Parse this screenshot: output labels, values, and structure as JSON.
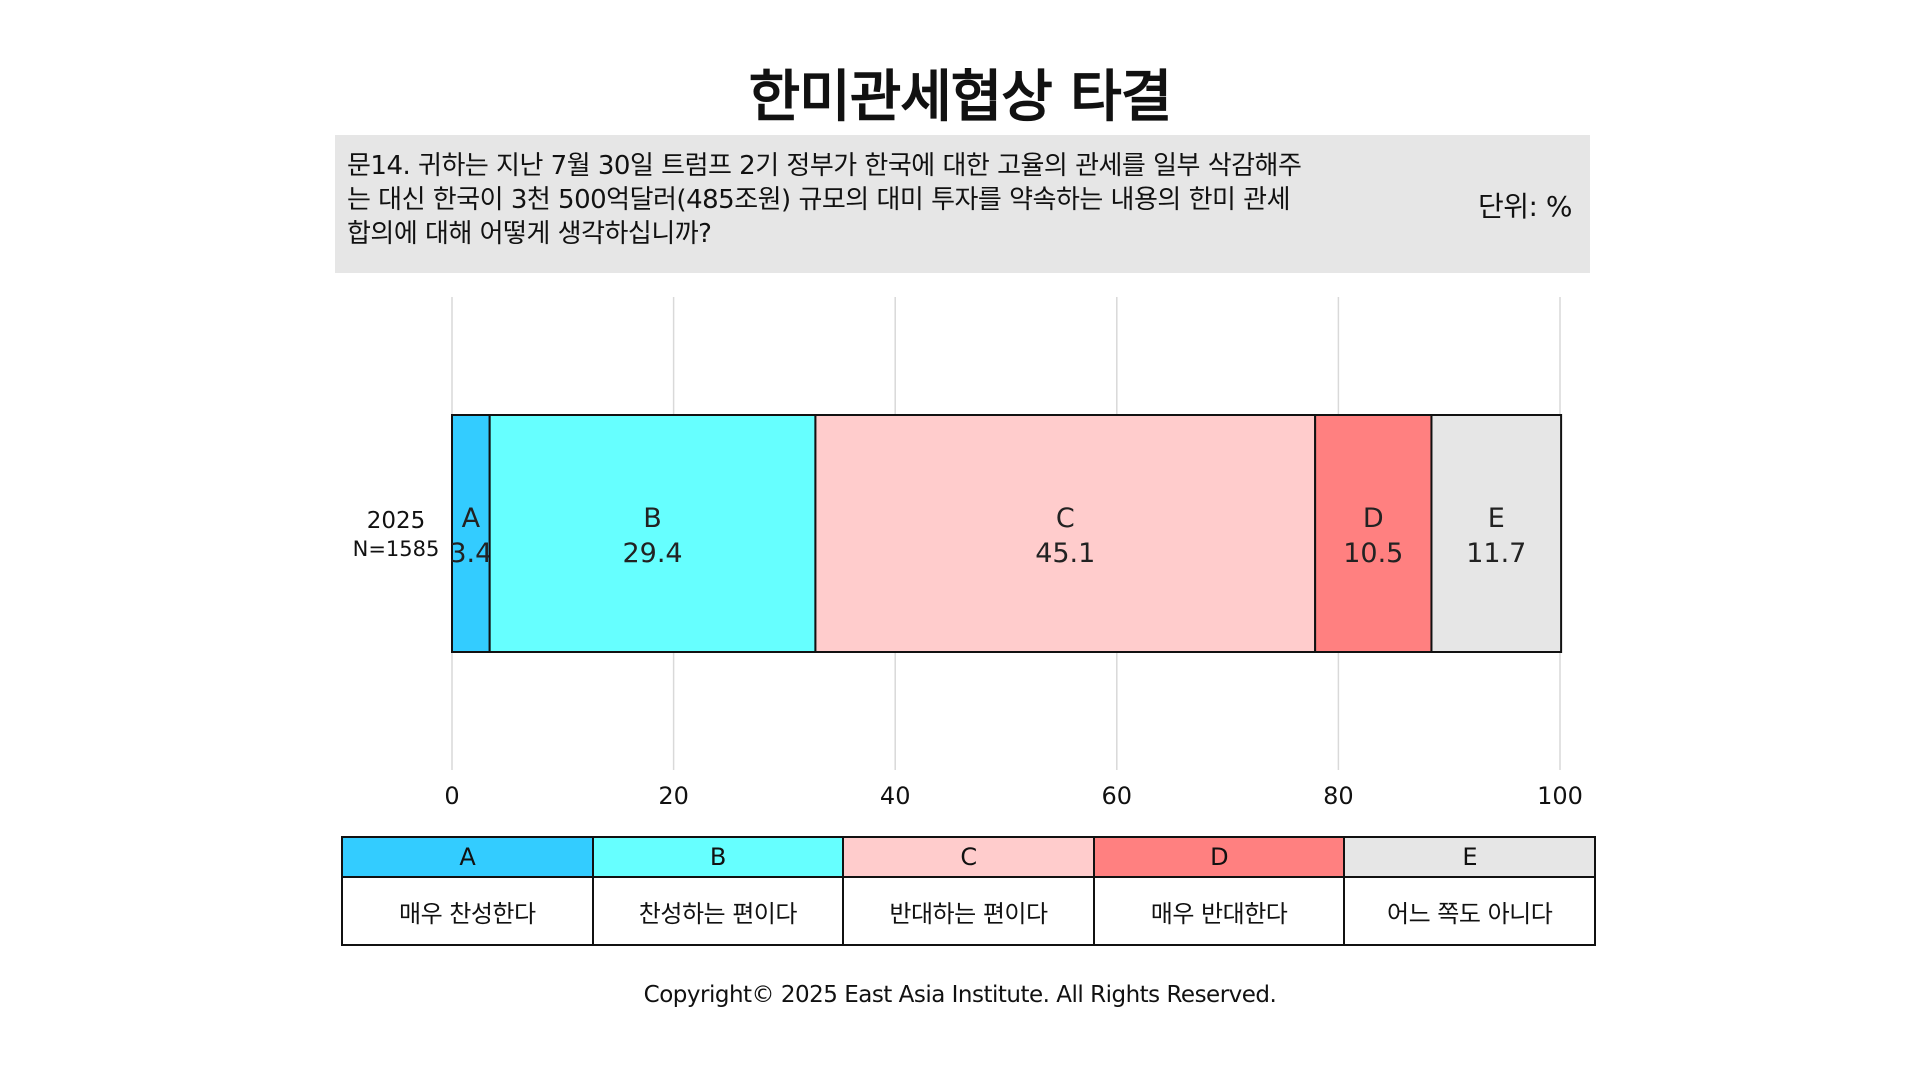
{
  "title": "한미관세협상 타결",
  "question": {
    "text": "문14. 귀하는 지난 7월 30일 트럼프 2기 정부가 한국에 대한 고율의 관세를 일부 삭감해주는 대신 한국이 3천 500억달러(485조원) 규모의 대미 투자를 약속하는 내용의 한미 관세 합의에 대해 어떻게 생각하십니까?",
    "unit": "단위: %"
  },
  "chart_data": {
    "type": "bar",
    "orientation": "horizontal",
    "stacked": true,
    "categories": [
      "2025\nN=1585"
    ],
    "category_labels": [
      {
        "line1": "2025",
        "line2": "N=1585"
      }
    ],
    "series": [
      {
        "name": "A",
        "values": [
          3.4
        ],
        "color": "#33ccff"
      },
      {
        "name": "B",
        "values": [
          29.4
        ],
        "color": "#66ffff"
      },
      {
        "name": "C",
        "values": [
          45.1
        ],
        "color": "#ffcccc"
      },
      {
        "name": "D",
        "values": [
          10.5
        ],
        "color": "#ff8080"
      },
      {
        "name": "E",
        "values": [
          11.7
        ],
        "color": "#e6e6e6"
      }
    ],
    "xlim": [
      0,
      100
    ],
    "xticks": [
      0,
      20,
      40,
      60,
      80,
      100
    ],
    "grid": true
  },
  "legend": {
    "items": [
      {
        "key": "A",
        "label": "매우 찬성한다",
        "color": "#33ccff"
      },
      {
        "key": "B",
        "label": "찬성하는 편이다",
        "color": "#66ffff"
      },
      {
        "key": "C",
        "label": "반대하는 편이다",
        "color": "#ffcccc"
      },
      {
        "key": "D",
        "label": "매우 반대한다",
        "color": "#ff8080"
      },
      {
        "key": "E",
        "label": "어느 쪽도 아니다",
        "color": "#e6e6e6"
      }
    ]
  },
  "footer": {
    "copyright": "Copyright© 2025 East Asia Institute. All Rights Reserved."
  }
}
